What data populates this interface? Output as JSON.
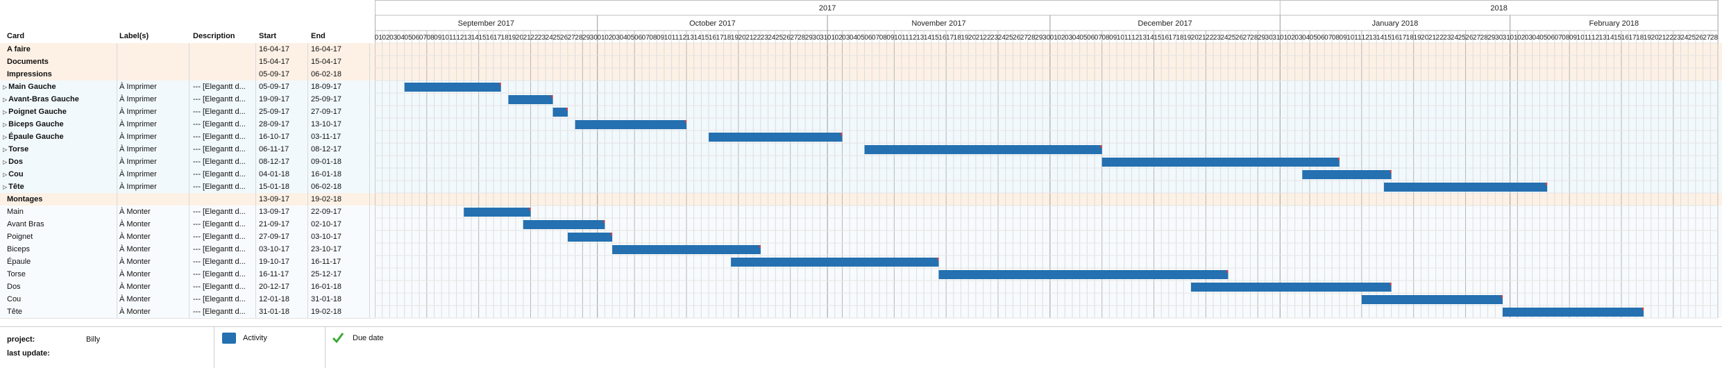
{
  "table": {
    "headers": {
      "card": "Card",
      "labels": "Label(s)",
      "description": "Description",
      "start": "Start",
      "end": "End"
    },
    "rows": [
      {
        "type": "group",
        "card": "A faire",
        "label": "",
        "desc": "",
        "start": "16-04-17",
        "end": "16-04-17"
      },
      {
        "type": "group",
        "card": "Documents",
        "label": "",
        "desc": "",
        "start": "15-04-17",
        "end": "15-04-17"
      },
      {
        "type": "group",
        "card": "Impressions",
        "label": "",
        "desc": "",
        "start": "05-09-17",
        "end": "06-02-18"
      },
      {
        "type": "task",
        "card": "Main Gauche",
        "label": "À Imprimer",
        "desc": "--- [Elegantt d...",
        "start": "05-09-17",
        "end": "18-09-17"
      },
      {
        "type": "task",
        "card": "Avant-Bras Gauche",
        "label": "À Imprimer",
        "desc": "--- [Elegantt d...",
        "start": "19-09-17",
        "end": "25-09-17"
      },
      {
        "type": "task",
        "card": "Poignet Gauche",
        "label": "À Imprimer",
        "desc": "--- [Elegantt d...",
        "start": "25-09-17",
        "end": "27-09-17"
      },
      {
        "type": "task",
        "card": "Biceps Gauche",
        "label": "À Imprimer",
        "desc": "--- [Elegantt d...",
        "start": "28-09-17",
        "end": "13-10-17"
      },
      {
        "type": "task",
        "card": "Épaule Gauche",
        "label": "À Imprimer",
        "desc": "--- [Elegantt d...",
        "start": "16-10-17",
        "end": "03-11-17"
      },
      {
        "type": "task",
        "card": "Torse",
        "label": "À Imprimer",
        "desc": "--- [Elegantt d...",
        "start": "06-11-17",
        "end": "08-12-17"
      },
      {
        "type": "task",
        "card": "Dos",
        "label": "À Imprimer",
        "desc": "--- [Elegantt d...",
        "start": "08-12-17",
        "end": "09-01-18"
      },
      {
        "type": "task",
        "card": "Cou",
        "label": "À Imprimer",
        "desc": "--- [Elegantt d...",
        "start": "04-01-18",
        "end": "16-01-18"
      },
      {
        "type": "task",
        "card": "Tête",
        "label": "À Imprimer",
        "desc": "--- [Elegantt d...",
        "start": "15-01-18",
        "end": "06-02-18"
      },
      {
        "type": "group",
        "card": "Montages",
        "label": "",
        "desc": "",
        "start": "13-09-17",
        "end": "19-02-18"
      },
      {
        "type": "sub",
        "card": "Main",
        "label": "À Monter",
        "desc": "--- [Elegantt d...",
        "start": "13-09-17",
        "end": "22-09-17"
      },
      {
        "type": "sub",
        "card": "Avant Bras",
        "label": "À Monter",
        "desc": "--- [Elegantt d...",
        "start": "21-09-17",
        "end": "02-10-17"
      },
      {
        "type": "sub",
        "card": "Poignet",
        "label": "À Monter",
        "desc": "--- [Elegantt d...",
        "start": "27-09-17",
        "end": "03-10-17"
      },
      {
        "type": "sub",
        "card": "Biceps",
        "label": "À Monter",
        "desc": "--- [Elegantt d...",
        "start": "03-10-17",
        "end": "23-10-17"
      },
      {
        "type": "sub",
        "card": "Épaule",
        "label": "À Monter",
        "desc": "--- [Elegantt d...",
        "start": "19-10-17",
        "end": "16-11-17"
      },
      {
        "type": "sub",
        "card": "Torse",
        "label": "À Monter",
        "desc": "--- [Elegantt d...",
        "start": "16-11-17",
        "end": "25-12-17"
      },
      {
        "type": "sub",
        "card": "Dos",
        "label": "À Monter",
        "desc": "--- [Elegantt d...",
        "start": "20-12-17",
        "end": "16-01-18"
      },
      {
        "type": "sub",
        "card": "Cou",
        "label": "À Monter",
        "desc": "--- [Elegantt d...",
        "start": "12-01-18",
        "end": "31-01-18"
      },
      {
        "type": "sub",
        "card": "Tête",
        "label": "À Monter",
        "desc": "--- [Elegantt d...",
        "start": "31-01-18",
        "end": "19-02-18"
      }
    ]
  },
  "chart_data": {
    "type": "gantt",
    "years": [
      "2017",
      "2018"
    ],
    "months": [
      "September 2017",
      "October 2017",
      "November 2017",
      "December 2017",
      "January 2018",
      "February 2018"
    ],
    "month_days": [
      30,
      31,
      30,
      31,
      31,
      28
    ],
    "axis_start": "2017-09-01",
    "axis_end": "2018-02-28",
    "bars": [
      {
        "row": 3,
        "start": "2017-09-05",
        "end": "2017-09-18"
      },
      {
        "row": 4,
        "start": "2017-09-19",
        "end": "2017-09-25"
      },
      {
        "row": 5,
        "start": "2017-09-25",
        "end": "2017-09-27"
      },
      {
        "row": 6,
        "start": "2017-09-28",
        "end": "2017-10-13"
      },
      {
        "row": 7,
        "start": "2017-10-16",
        "end": "2017-11-03"
      },
      {
        "row": 8,
        "start": "2017-11-06",
        "end": "2017-12-08"
      },
      {
        "row": 9,
        "start": "2017-12-08",
        "end": "2018-01-09"
      },
      {
        "row": 10,
        "start": "2018-01-04",
        "end": "2018-01-16"
      },
      {
        "row": 11,
        "start": "2018-01-15",
        "end": "2018-02-06"
      },
      {
        "row": 13,
        "start": "2017-09-13",
        "end": "2017-09-22"
      },
      {
        "row": 14,
        "start": "2017-09-21",
        "end": "2017-10-02"
      },
      {
        "row": 15,
        "start": "2017-09-27",
        "end": "2017-10-03"
      },
      {
        "row": 16,
        "start": "2017-10-03",
        "end": "2017-10-23"
      },
      {
        "row": 17,
        "start": "2017-10-19",
        "end": "2017-11-16"
      },
      {
        "row": 18,
        "start": "2017-11-16",
        "end": "2017-12-25"
      },
      {
        "row": 19,
        "start": "2017-12-20",
        "end": "2018-01-16"
      },
      {
        "row": 20,
        "start": "2018-01-12",
        "end": "2018-01-31"
      },
      {
        "row": 21,
        "start": "2018-01-31",
        "end": "2018-02-19"
      }
    ],
    "bar_color": "#2470b0",
    "due_color": "#e23b3b"
  },
  "footer": {
    "project_label": "project:",
    "project_value": "Billy",
    "update_label": "last update:",
    "legend_activity": "Activity",
    "legend_due": "Due date",
    "check_color": "#3aaa35"
  }
}
